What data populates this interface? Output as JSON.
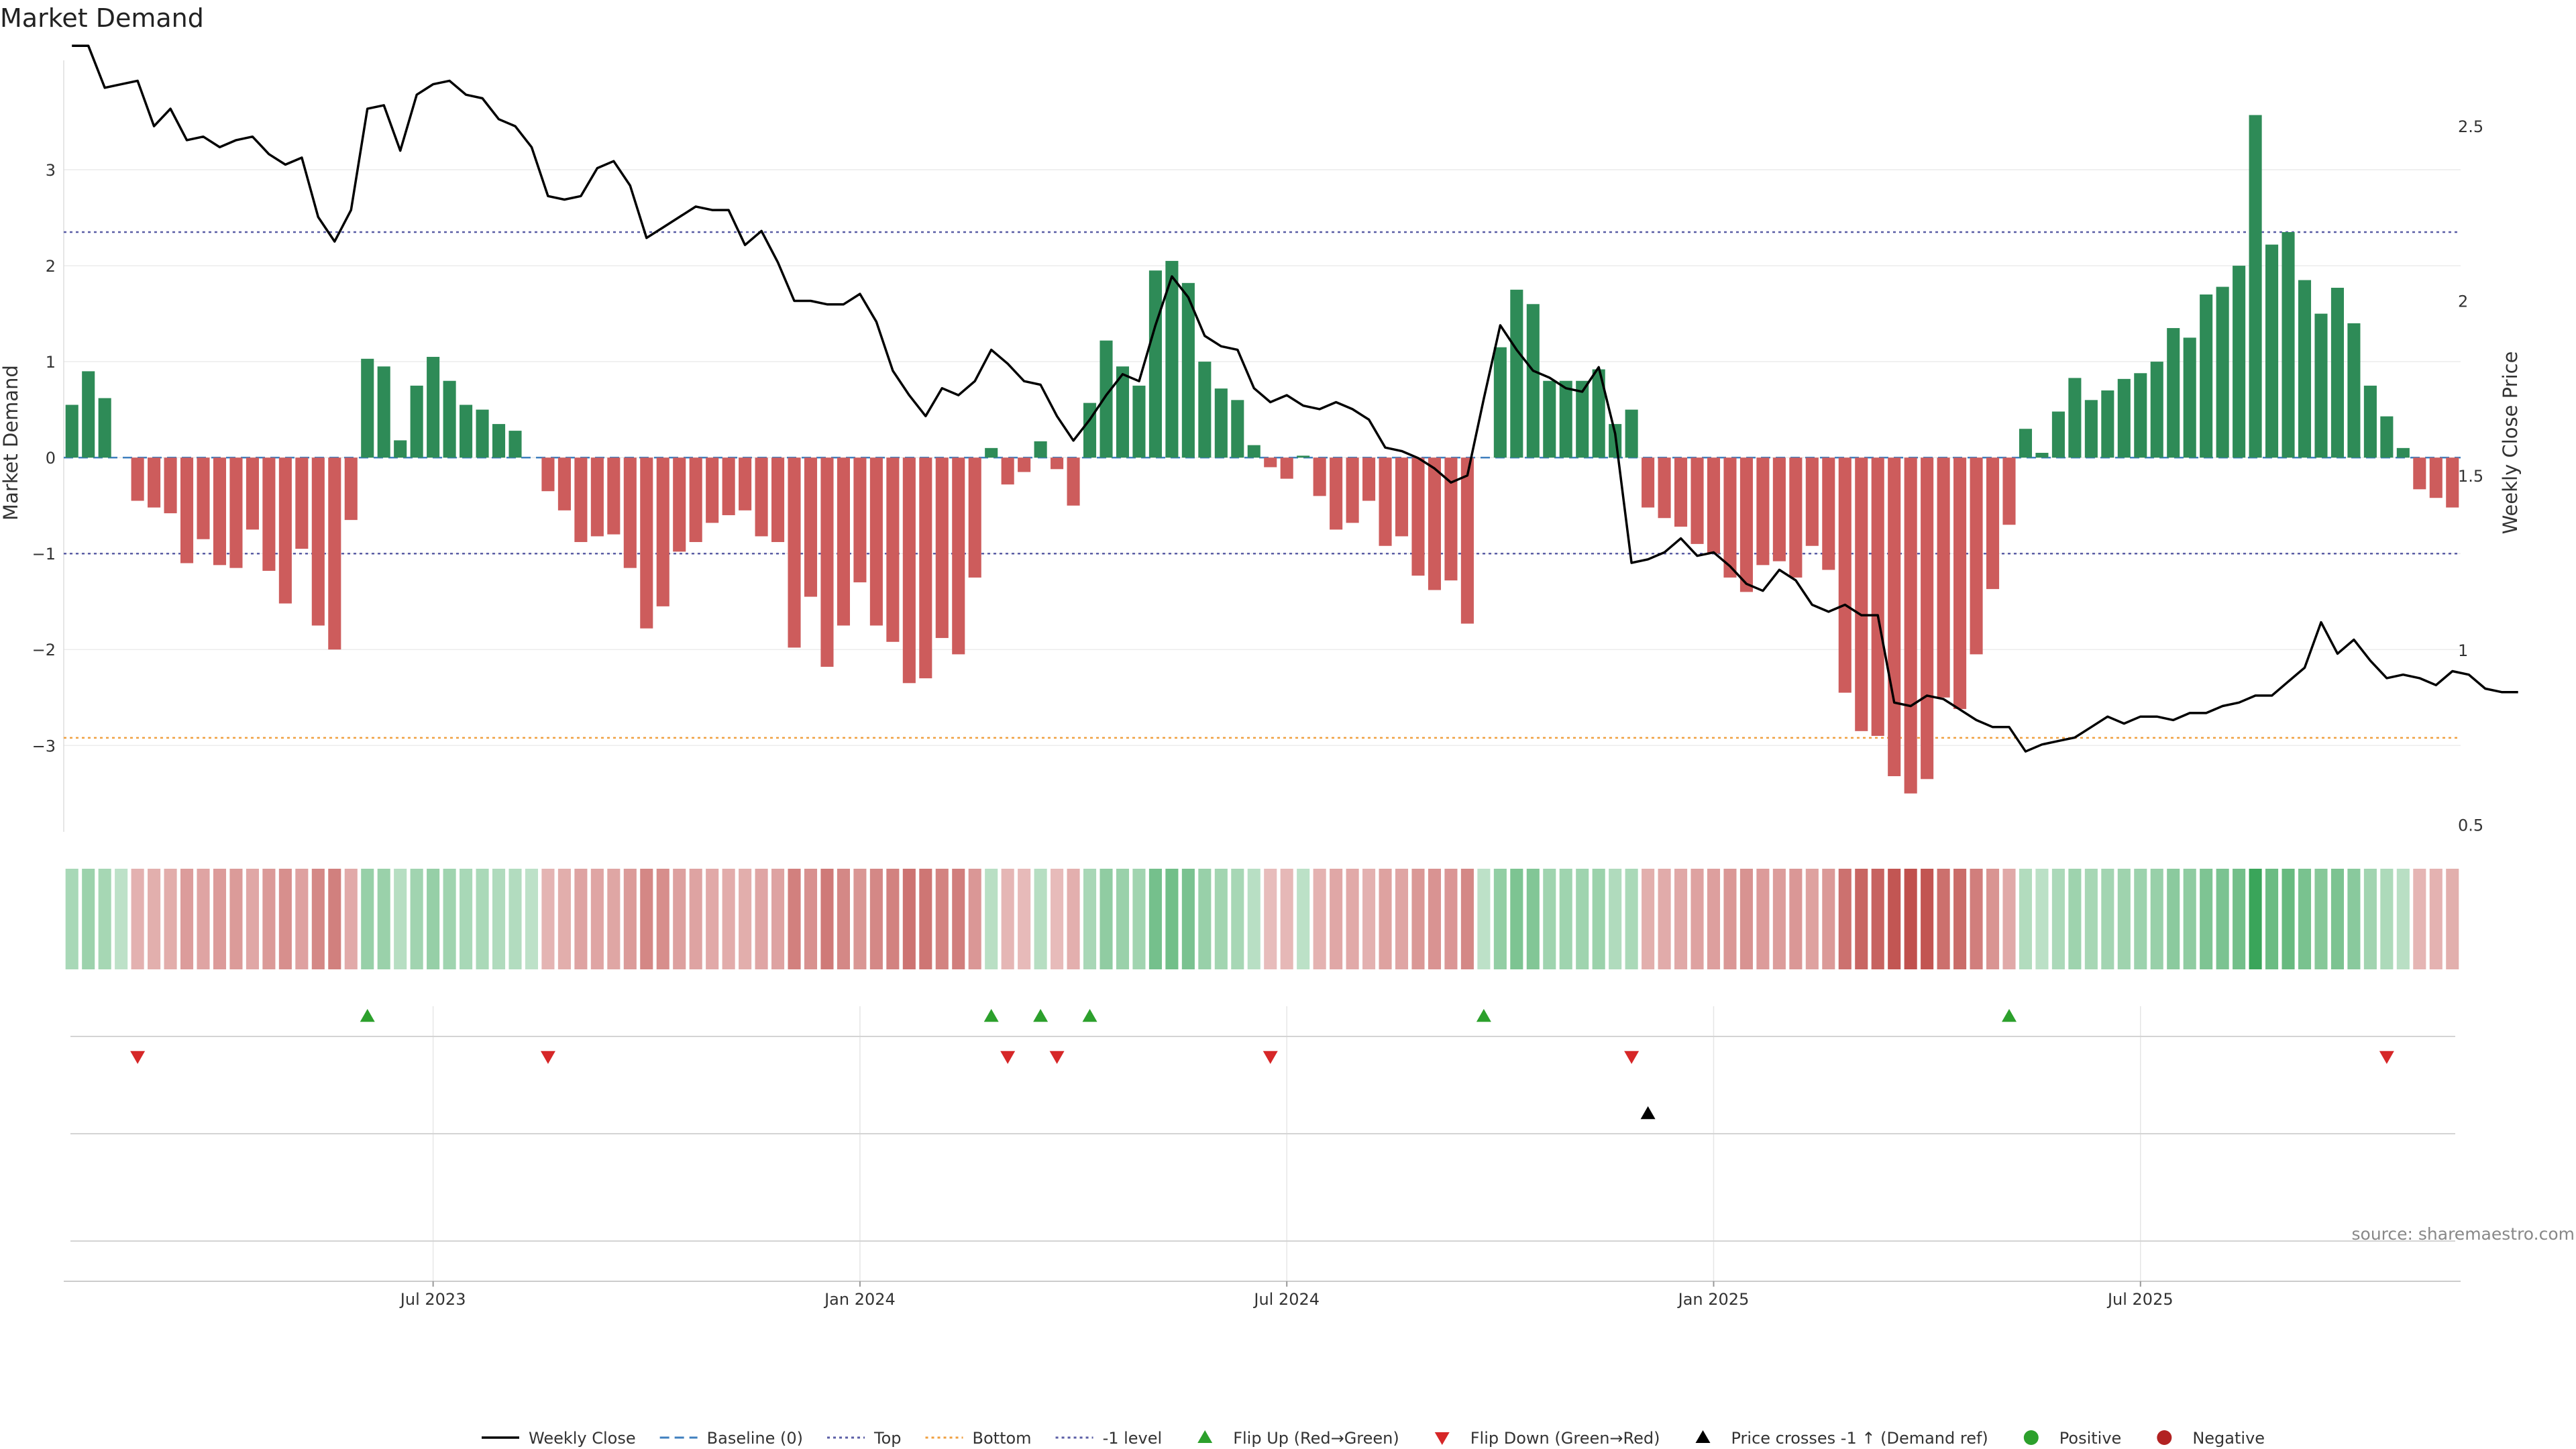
{
  "chart_data": {
    "type": "bar",
    "title": "Market Demand",
    "ylabel_left": "Market Demand",
    "ylabel_right": "Weekly Close Price",
    "y_left_range": [
      -3.9,
      4.0
    ],
    "y_left_ticks": [
      -3,
      -2,
      -1,
      0,
      1,
      2,
      3
    ],
    "y_left_tick_labels": [
      "−3",
      "−2",
      "−1",
      "0",
      "1",
      "2",
      "3"
    ],
    "y_right_range": [
      0.48,
      2.65
    ],
    "y_right_ticks": [
      0.5,
      1,
      1.5,
      2,
      2.5
    ],
    "y_right_tick_labels": [
      "0.5",
      "1",
      "1.5",
      "2",
      "2.5"
    ],
    "x_tick_labels": [
      "Jul 2023",
      "Jan 2024",
      "Jul 2024",
      "Jan 2025",
      "Jul 2025"
    ],
    "x_tick_weeks": [
      22,
      48,
      74,
      100,
      126
    ],
    "reference_lines": {
      "baseline": 0,
      "top": 2.35,
      "bottom": -2.92,
      "minus_one": -1
    },
    "demand": [
      0.55,
      0.9,
      0.62,
      0.0,
      -0.45,
      -0.52,
      -0.58,
      -1.1,
      -0.85,
      -1.12,
      -1.15,
      -0.75,
      -1.18,
      -1.52,
      -0.95,
      -1.75,
      -2.0,
      -0.65,
      1.03,
      0.95,
      0.18,
      0.75,
      1.05,
      0.8,
      0.55,
      0.5,
      0.35,
      0.28,
      0.0,
      -0.35,
      -0.55,
      -0.88,
      -0.82,
      -0.8,
      -1.15,
      -1.78,
      -1.55,
      -0.98,
      -0.88,
      -0.68,
      -0.6,
      -0.55,
      -0.82,
      -0.88,
      -1.98,
      -1.45,
      -2.18,
      -1.75,
      -1.3,
      -1.75,
      -1.92,
      -2.35,
      -2.3,
      -1.88,
      -2.05,
      -1.25,
      0.1,
      -0.28,
      -0.15,
      0.17,
      -0.12,
      -0.5,
      0.57,
      1.22,
      0.95,
      0.75,
      1.95,
      2.05,
      1.82,
      1.0,
      0.72,
      0.6,
      0.13,
      -0.1,
      -0.22,
      0.02,
      -0.4,
      -0.75,
      -0.68,
      -0.45,
      -0.92,
      -0.82,
      -1.23,
      -1.38,
      -1.28,
      -1.73,
      0.0,
      1.15,
      1.75,
      1.6,
      0.8,
      0.8,
      0.8,
      0.92,
      0.35,
      0.5,
      -0.52,
      -0.63,
      -0.72,
      -0.9,
      -1.0,
      -1.25,
      -1.4,
      -1.12,
      -1.08,
      -1.25,
      -0.92,
      -1.17,
      -2.45,
      -2.85,
      -2.9,
      -3.32,
      -3.5,
      -3.35,
      -2.5,
      -2.62,
      -2.05,
      -1.37,
      -0.7,
      0.3,
      0.05,
      0.48,
      0.83,
      0.6,
      0.7,
      0.82,
      0.88,
      1.0,
      1.35,
      1.25,
      1.7,
      1.78,
      2.0,
      3.57,
      2.22,
      2.35,
      1.85,
      1.5,
      1.77,
      1.4,
      0.75,
      0.43,
      0.1,
      -0.33,
      -0.42,
      -0.52
    ],
    "weekly_close": [
      2.73,
      2.73,
      2.61,
      2.62,
      2.63,
      2.5,
      2.55,
      2.46,
      2.47,
      2.44,
      2.46,
      2.47,
      2.42,
      2.39,
      2.41,
      2.24,
      2.17,
      2.26,
      2.55,
      2.56,
      2.43,
      2.59,
      2.62,
      2.63,
      2.59,
      2.58,
      2.52,
      2.5,
      2.44,
      2.3,
      2.29,
      2.3,
      2.38,
      2.4,
      2.33,
      2.18,
      2.21,
      2.24,
      2.27,
      2.26,
      2.26,
      2.16,
      2.2,
      2.11,
      2.0,
      2.0,
      1.99,
      1.99,
      2.02,
      1.94,
      1.8,
      1.73,
      1.67,
      1.75,
      1.73,
      1.77,
      1.86,
      1.82,
      1.77,
      1.76,
      1.67,
      1.6,
      1.66,
      1.73,
      1.79,
      1.77,
      1.93,
      2.07,
      2.01,
      1.9,
      1.87,
      1.86,
      1.75,
      1.71,
      1.73,
      1.7,
      1.69,
      1.71,
      1.69,
      1.66,
      1.58,
      1.57,
      1.55,
      1.52,
      1.48,
      1.5,
      1.72,
      1.93,
      1.86,
      1.8,
      1.78,
      1.75,
      1.74,
      1.81,
      1.62,
      1.25,
      1.26,
      1.28,
      1.32,
      1.27,
      1.28,
      1.24,
      1.19,
      1.17,
      1.23,
      1.2,
      1.13,
      1.11,
      1.13,
      1.1,
      1.1,
      0.85,
      0.84,
      0.87,
      0.86,
      0.83,
      0.8,
      0.78,
      0.78,
      0.71,
      0.73,
      0.74,
      0.75,
      0.78,
      0.81,
      0.79,
      0.81,
      0.81,
      0.8,
      0.82,
      0.82,
      0.84,
      0.85,
      0.87,
      0.87,
      0.91,
      0.95,
      1.08,
      0.99,
      1.03,
      0.97,
      0.92,
      0.93,
      0.92,
      0.9,
      0.94,
      0.93,
      0.89,
      0.88,
      0.88
    ],
    "flip_up_weeks": [
      18,
      56,
      59,
      62,
      86,
      118
    ],
    "flip_down_weeks": [
      4,
      29,
      57,
      60,
      73,
      95,
      141
    ],
    "price_cross_weeks": [
      96
    ],
    "colors": {
      "positive_bar": "#2e8b57",
      "negative_bar": "#cd5c5c",
      "price_line": "#000000",
      "top_line": "#5b5ea6",
      "bottom_line": "#f0a040",
      "minus_one_line": "#5b5ea6",
      "baseline": "#3f7fbf",
      "flip_up": "#2ca02c",
      "flip_down": "#d62728",
      "positive_dot": "#2ca02c",
      "negative_dot": "#b22222"
    },
    "legend": [
      {
        "label": "Weekly Close",
        "kind": "line"
      },
      {
        "label": "Baseline (0)",
        "kind": "dash"
      },
      {
        "label": "Top",
        "kind": "dot-blue"
      },
      {
        "label": "Bottom",
        "kind": "dot-orange"
      },
      {
        "label": "-1 level",
        "kind": "dot-blue"
      },
      {
        "label": "Flip Up (Red→Green)",
        "kind": "tri-up-green"
      },
      {
        "label": "Flip Down (Green→Red)",
        "kind": "tri-down-red"
      },
      {
        "label": "Price crosses -1 ↑ (Demand ref)",
        "kind": "tri-up-black"
      },
      {
        "label": "Positive",
        "kind": "dot-green"
      },
      {
        "label": "Negative",
        "kind": "dot-red"
      }
    ],
    "source": "source: sharemaestro.com"
  }
}
